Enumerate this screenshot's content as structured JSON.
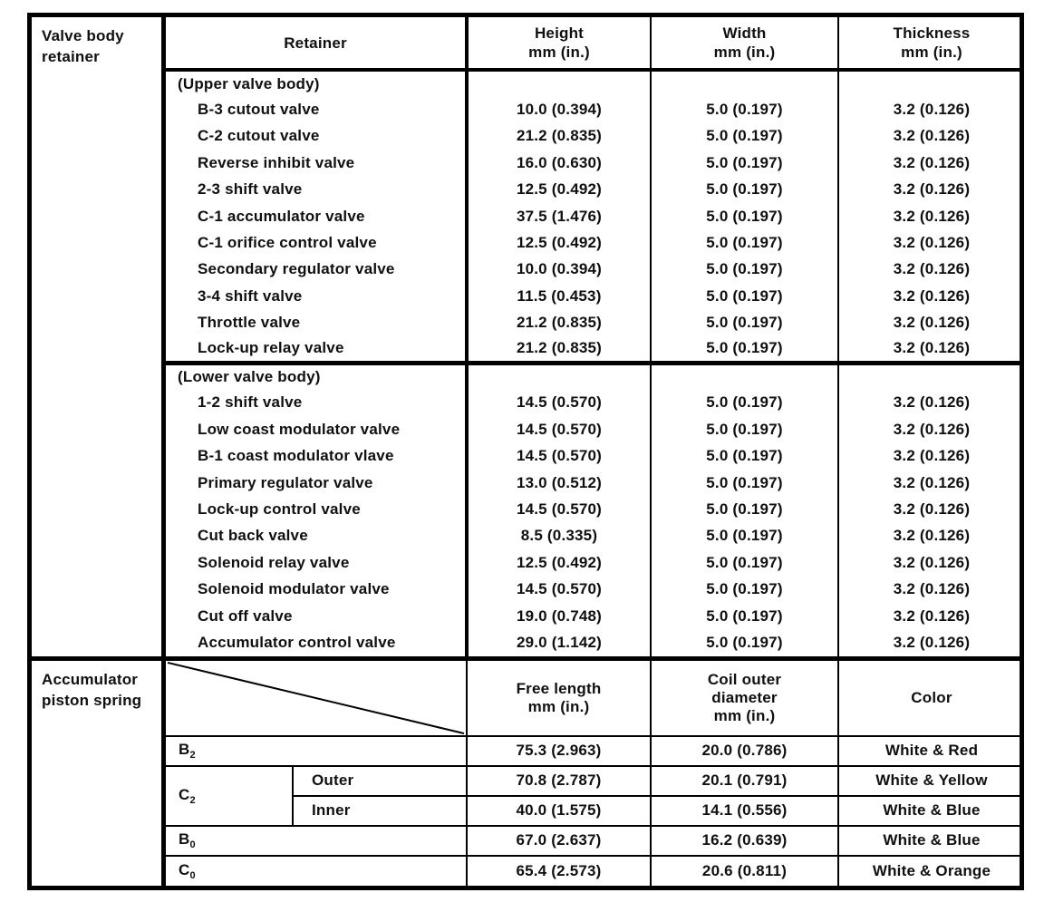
{
  "colors": {
    "ink": "#101010",
    "paper": "#ffffff"
  },
  "valve_body": {
    "label": "Valve body retainer",
    "headers": {
      "retainer": "Retainer",
      "height": {
        "title": "Height",
        "unit": "mm (in.)"
      },
      "width": {
        "title": "Width",
        "unit": "mm (in.)"
      },
      "thickness": {
        "title": "Thickness",
        "unit": "mm (in.)"
      }
    },
    "groups": [
      {
        "heading": "(Upper valve body)",
        "rows": [
          {
            "name": "B-3 cutout valve",
            "height": "10.0 (0.394)",
            "width": "5.0 (0.197)",
            "thickness": "3.2 (0.126)"
          },
          {
            "name": "C-2 cutout valve",
            "height": "21.2 (0.835)",
            "width": "5.0 (0.197)",
            "thickness": "3.2 (0.126)"
          },
          {
            "name": "Reverse inhibit valve",
            "height": "16.0 (0.630)",
            "width": "5.0 (0.197)",
            "thickness": "3.2 (0.126)"
          },
          {
            "name": "2-3 shift valve",
            "height": "12.5 (0.492)",
            "width": "5.0 (0.197)",
            "thickness": "3.2 (0.126)"
          },
          {
            "name": "C-1 accumulator valve",
            "height": "37.5 (1.476)",
            "width": "5.0 (0.197)",
            "thickness": "3.2 (0.126)"
          },
          {
            "name": "C-1 orifice control valve",
            "height": "12.5 (0.492)",
            "width": "5.0 (0.197)",
            "thickness": "3.2 (0.126)"
          },
          {
            "name": "Secondary regulator valve",
            "height": "10.0 (0.394)",
            "width": "5.0 (0.197)",
            "thickness": "3.2 (0.126)"
          },
          {
            "name": "3-4 shift valve",
            "height": "11.5 (0.453)",
            "width": "5.0 (0.197)",
            "thickness": "3.2 (0.126)"
          },
          {
            "name": "Throttle valve",
            "height": "21.2 (0.835)",
            "width": "5.0 (0.197)",
            "thickness": "3.2 (0.126)"
          },
          {
            "name": "Lock-up relay valve",
            "height": "21.2 (0.835)",
            "width": "5.0 (0.197)",
            "thickness": "3.2 (0.126)"
          }
        ]
      },
      {
        "heading": "(Lower valve body)",
        "rows": [
          {
            "name": "1-2 shift valve",
            "height": "14.5 (0.570)",
            "width": "5.0 (0.197)",
            "thickness": "3.2 (0.126)"
          },
          {
            "name": "Low coast modulator valve",
            "height": "14.5 (0.570)",
            "width": "5.0 (0.197)",
            "thickness": "3.2 (0.126)"
          },
          {
            "name": "B-1 coast modulator vlave",
            "height": "14.5 (0.570)",
            "width": "5.0 (0.197)",
            "thickness": "3.2 (0.126)"
          },
          {
            "name": "Primary regulator valve",
            "height": "13.0 (0.512)",
            "width": "5.0 (0.197)",
            "thickness": "3.2 (0.126)"
          },
          {
            "name": "Lock-up control valve",
            "height": "14.5 (0.570)",
            "width": "5.0 (0.197)",
            "thickness": "3.2 (0.126)"
          },
          {
            "name": "Cut back valve",
            "height": "8.5 (0.335)",
            "width": "5.0 (0.197)",
            "thickness": "3.2 (0.126)"
          },
          {
            "name": "Solenoid relay valve",
            "height": "12.5 (0.492)",
            "width": "5.0 (0.197)",
            "thickness": "3.2 (0.126)"
          },
          {
            "name": "Solenoid modulator valve",
            "height": "14.5 (0.570)",
            "width": "5.0 (0.197)",
            "thickness": "3.2 (0.126)"
          },
          {
            "name": "Cut off valve",
            "height": "19.0 (0.748)",
            "width": "5.0 (0.197)",
            "thickness": "3.2 (0.126)"
          },
          {
            "name": "Accumulator control valve",
            "height": "29.0 (1.142)",
            "width": "5.0 (0.197)",
            "thickness": "3.2 (0.126)"
          }
        ]
      }
    ]
  },
  "accumulator": {
    "label": "Accumulator piston spring",
    "headers": {
      "free_length": {
        "line1": "Free length",
        "line2": "mm (in.)"
      },
      "coil_outer_diameter": {
        "line1": "Coil outer",
        "line2": "diameter",
        "line3": "mm (in.)"
      },
      "color": "Color"
    },
    "rows": [
      {
        "label": {
          "base": "B",
          "sub": "2"
        },
        "free_length": "75.3 (2.963)",
        "coil_od": "20.0 (0.786)",
        "color": "White & Red"
      },
      {
        "label": {
          "base": "C",
          "sub": "2"
        },
        "variants": [
          {
            "name": "Outer",
            "free_length": "70.8 (2.787)",
            "coil_od": "20.1 (0.791)",
            "color": "White & Yellow"
          },
          {
            "name": "Inner",
            "free_length": "40.0 (1.575)",
            "coil_od": "14.1 (0.556)",
            "color": "White & Blue"
          }
        ]
      },
      {
        "label": {
          "base": "B",
          "sub": "0"
        },
        "free_length": "67.0 (2.637)",
        "coil_od": "16.2 (0.639)",
        "color": "White & Blue"
      },
      {
        "label": {
          "base": "C",
          "sub": "0"
        },
        "free_length": "65.4 (2.573)",
        "coil_od": "20.6 (0.811)",
        "color": "White & Orange"
      }
    ]
  }
}
